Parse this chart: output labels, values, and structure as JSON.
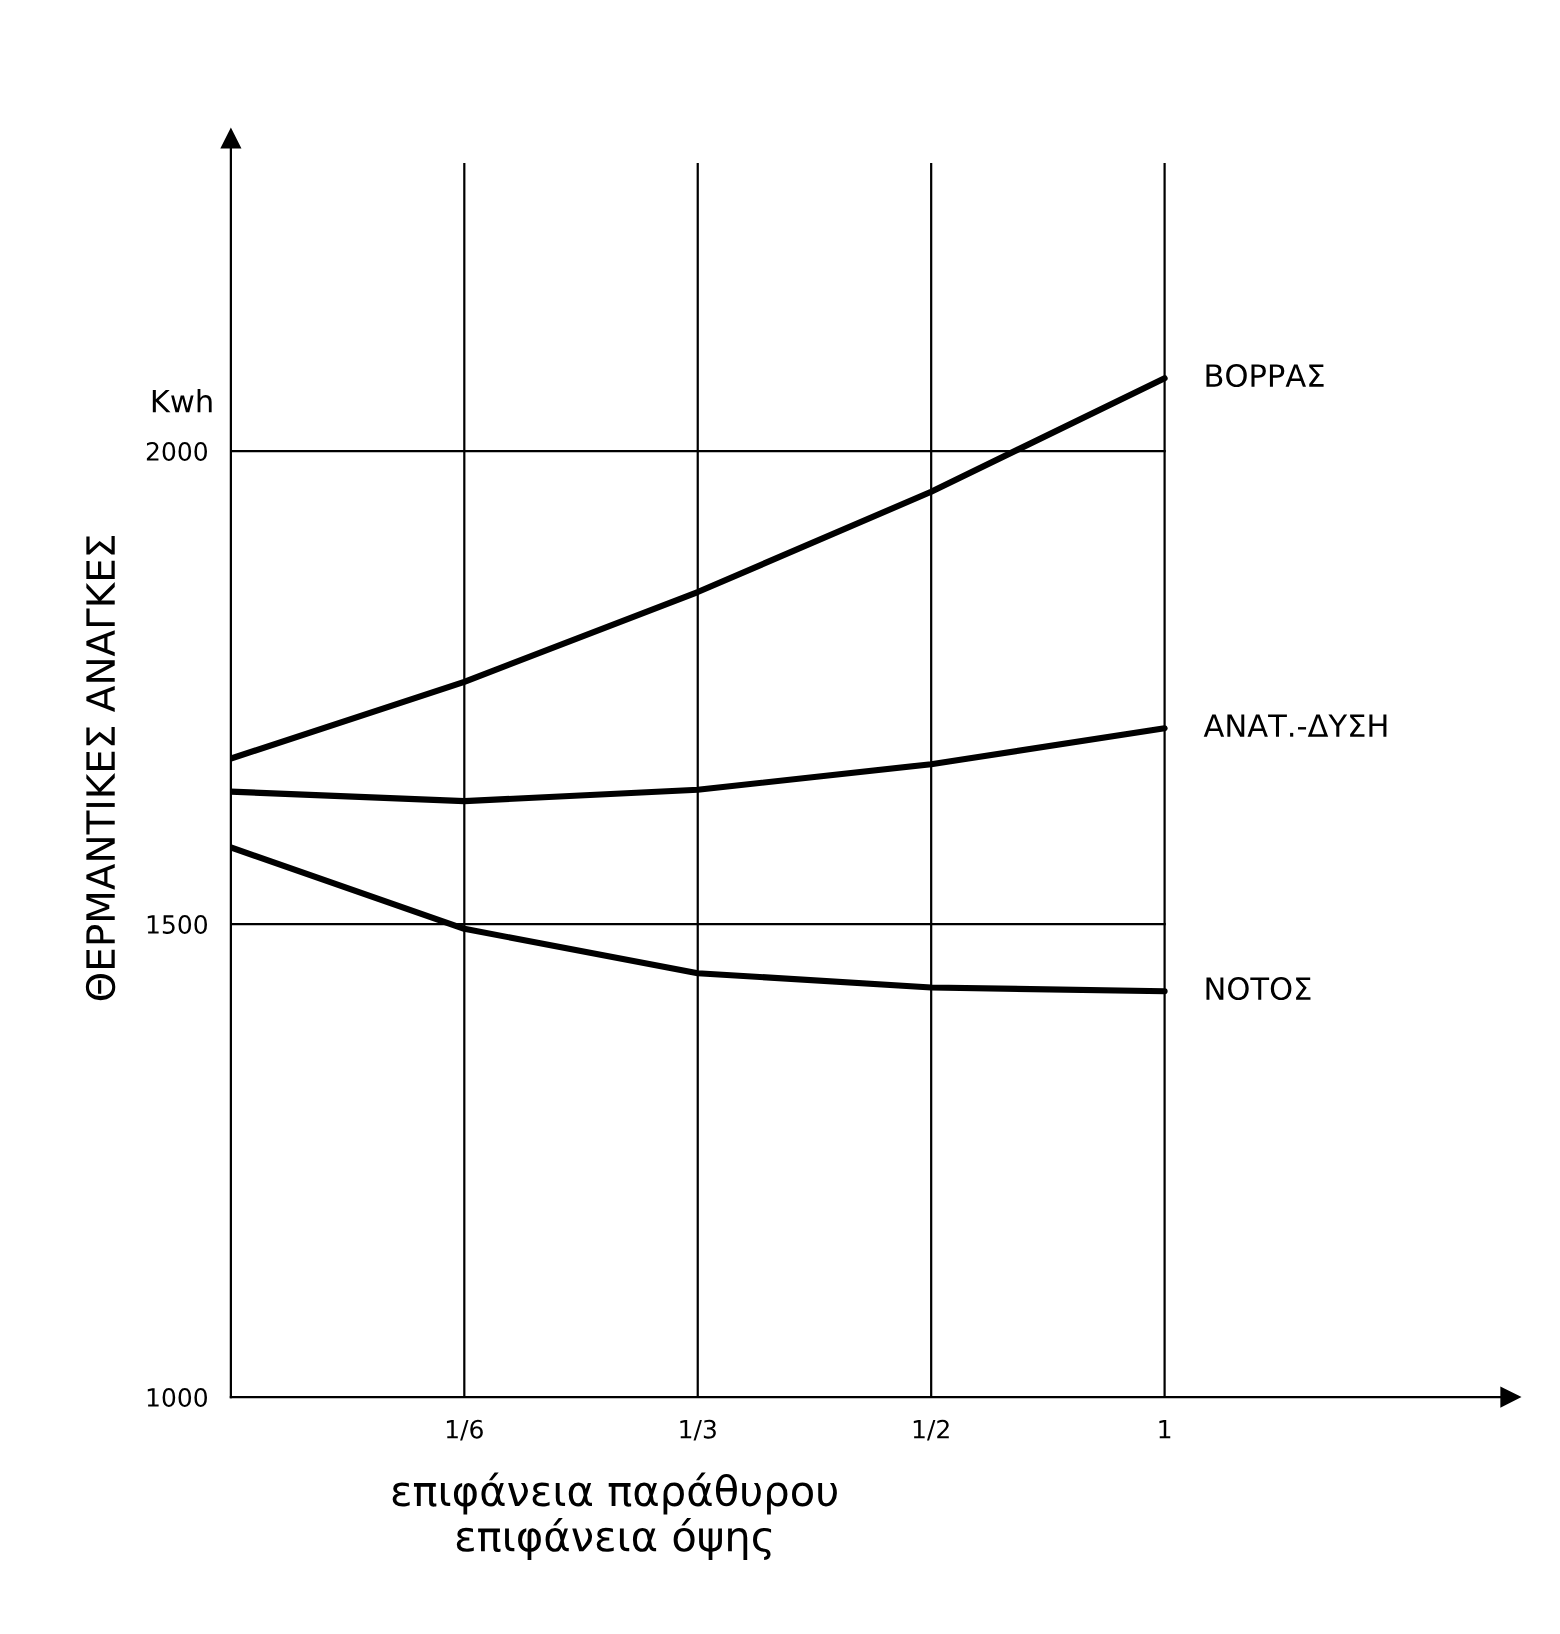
{
  "chart_data": {
    "type": "line",
    "ylabel": "ΘΕΡΜΑΝΤΙΚΕΣ ΑΝΑΓΚΕΣ",
    "xlabel": "επιφάνεια παράθυρου\nεπιφάνεια όψης",
    "annotations": [
      "Kwh"
    ],
    "categories": [
      null,
      "1/6",
      "1/3",
      "1/2",
      "1"
    ],
    "series": [
      {
        "name": "ΒΟΡΡΑΣ",
        "color": "#000000",
        "values": [
          1675,
          1756,
          1851,
          1957,
          2077
        ]
      },
      {
        "name": "ΑΝΑΤ.-ΔΥΣΗ",
        "color": "#000000",
        "values": [
          1640,
          1630,
          1642,
          1669,
          1707
        ]
      },
      {
        "name": "ΝΟΤΟΣ",
        "color": "#000000",
        "values": [
          1581,
          1495,
          1448,
          1433,
          1429
        ]
      }
    ],
    "ylim": [
      1000,
      2330
    ],
    "yticks": [
      1000,
      1500,
      2000
    ],
    "grid": true,
    "legend": false,
    "marker": "none",
    "line_style": "solid"
  }
}
